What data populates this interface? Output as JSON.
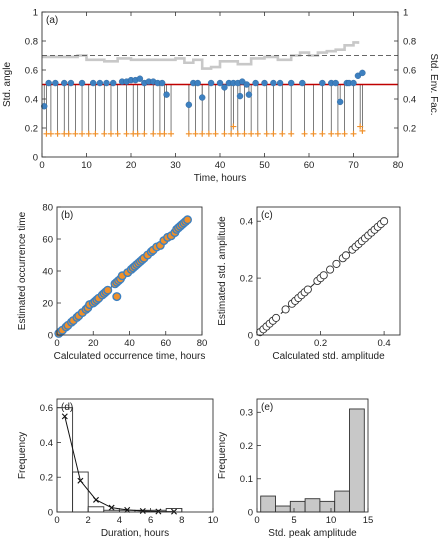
{
  "chart_data": [
    {
      "panel": "(a)",
      "type": "line",
      "xlabel": "Time, hours",
      "ylabel": "Std. angle",
      "ylabel_right": "Std. Env. Fac.",
      "xlim": [
        0,
        80
      ],
      "ylim": [
        0,
        1
      ],
      "xticks": [
        0,
        10,
        20,
        30,
        40,
        50,
        60,
        70,
        80
      ],
      "yticks": [
        0,
        0.2,
        0.4,
        0.6,
        0.8,
        1
      ],
      "yticks_right": [
        0.2,
        0.4,
        0.6,
        0.8,
        1
      ],
      "hlines": [
        {
          "y": 0.5,
          "color": "#c00000",
          "style": "solid"
        },
        {
          "y": 0.7,
          "color": "#666666",
          "style": "dashed"
        }
      ],
      "envelope": {
        "color": "#c8c8c8",
        "x": [
          0,
          5,
          8,
          10,
          14,
          17,
          20,
          24,
          30,
          32,
          34,
          36,
          38,
          40,
          44,
          47,
          50,
          53,
          56,
          58,
          60,
          62,
          64,
          66,
          68,
          70,
          71
        ],
        "y": [
          0.69,
          0.69,
          0.7,
          0.67,
          0.66,
          0.68,
          0.67,
          0.67,
          0.68,
          0.65,
          0.67,
          0.61,
          0.62,
          0.66,
          0.64,
          0.68,
          0.69,
          0.67,
          0.7,
          0.72,
          0.7,
          0.72,
          0.73,
          0.74,
          0.77,
          0.79,
          0.78
        ]
      },
      "series": [
        {
          "marker": "circle",
          "color": "#3d80c0",
          "x": [
            0.5,
            1.5,
            3,
            5,
            6.5,
            9,
            11.5,
            13,
            14.5,
            16,
            18,
            19,
            20,
            21,
            22,
            23,
            24,
            25,
            26,
            27,
            28,
            33,
            34,
            35,
            36,
            38,
            40,
            41,
            42,
            43,
            44,
            44.5,
            45,
            46,
            46.5,
            48,
            50,
            52,
            53.5,
            56,
            58.5,
            63,
            65,
            66,
            67,
            68.5,
            69,
            70,
            71,
            72
          ],
          "y": [
            0.35,
            0.51,
            0.51,
            0.51,
            0.51,
            0.51,
            0.51,
            0.51,
            0.51,
            0.51,
            0.52,
            0.52,
            0.53,
            0.53,
            0.54,
            0.51,
            0.52,
            0.52,
            0.51,
            0.51,
            0.43,
            0.36,
            0.51,
            0.51,
            0.41,
            0.51,
            0.51,
            0.48,
            0.51,
            0.51,
            0.51,
            0.42,
            0.52,
            0.5,
            0.43,
            0.51,
            0.51,
            0.51,
            0.51,
            0.51,
            0.51,
            0.51,
            0.51,
            0.51,
            0.38,
            0.51,
            0.51,
            0.51,
            0.56,
            0.58
          ]
        },
        {
          "marker": "plus",
          "color": "#f0902a",
          "x": [
            1,
            2,
            3.5,
            5,
            6,
            7.5,
            9,
            10.5,
            12,
            14,
            15.5,
            17,
            19,
            20.5,
            21.5,
            23,
            25,
            26.5,
            27.5,
            29,
            33,
            34.5,
            36,
            37.5,
            39,
            41,
            42.5,
            43,
            44,
            45.5,
            47,
            48.5,
            50.5,
            52,
            54,
            56,
            59,
            61,
            63,
            65,
            66.5,
            68,
            70,
            71.5,
            72
          ],
          "y": [
            0.16,
            0.16,
            0.16,
            0.16,
            0.16,
            0.16,
            0.16,
            0.16,
            0.16,
            0.16,
            0.16,
            0.16,
            0.16,
            0.16,
            0.16,
            0.16,
            0.16,
            0.16,
            0.16,
            0.16,
            0.16,
            0.16,
            0.16,
            0.16,
            0.16,
            0.16,
            0.16,
            0.21,
            0.16,
            0.16,
            0.16,
            0.16,
            0.16,
            0.16,
            0.16,
            0.16,
            0.16,
            0.16,
            0.16,
            0.16,
            0.16,
            0.16,
            0.16,
            0.21,
            0.18
          ]
        }
      ]
    },
    {
      "panel": "(b)",
      "type": "scatter",
      "xlabel": "Calculated occurrence time, hours",
      "ylabel": "Estimated occurrence time",
      "xlim": [
        0,
        80
      ],
      "ylim": [
        0,
        80
      ],
      "xticks": [
        0,
        20,
        40,
        60,
        80
      ],
      "yticks": [
        0,
        20,
        40,
        60,
        80
      ],
      "line": [
        [
          0,
          0
        ],
        [
          72,
          72
        ]
      ],
      "points": [
        [
          1,
          1
        ],
        [
          2,
          2
        ],
        [
          3,
          3
        ],
        [
          5,
          5
        ],
        [
          6,
          6
        ],
        [
          8,
          8
        ],
        [
          9,
          9
        ],
        [
          11,
          11
        ],
        [
          12,
          12
        ],
        [
          14,
          14
        ],
        [
          16,
          16
        ],
        [
          17,
          17
        ],
        [
          18,
          19
        ],
        [
          20,
          20
        ],
        [
          21,
          21
        ],
        [
          22,
          22
        ],
        [
          23,
          23
        ],
        [
          25,
          25
        ],
        [
          26,
          26
        ],
        [
          27,
          27
        ],
        [
          28,
          28
        ],
        [
          32,
          32
        ],
        [
          33,
          33
        ],
        [
          34,
          34
        ],
        [
          35,
          35
        ],
        [
          36,
          37
        ],
        [
          33,
          24
        ],
        [
          39,
          39
        ],
        [
          41,
          41
        ],
        [
          42,
          42
        ],
        [
          43,
          43
        ],
        [
          44,
          44
        ],
        [
          45,
          45
        ],
        [
          46,
          46
        ],
        [
          47,
          47
        ],
        [
          48,
          48
        ],
        [
          50,
          50
        ],
        [
          52,
          52
        ],
        [
          53,
          53
        ],
        [
          55,
          55
        ],
        [
          57,
          56
        ],
        [
          59,
          59
        ],
        [
          61,
          61
        ],
        [
          63,
          62
        ],
        [
          65,
          64
        ],
        [
          66,
          66
        ],
        [
          67,
          67
        ],
        [
          68,
          68
        ],
        [
          69,
          69
        ],
        [
          70,
          70
        ],
        [
          71,
          71
        ],
        [
          72,
          72
        ]
      ]
    },
    {
      "panel": "(c)",
      "type": "scatter",
      "xlabel": "Calculated std. amplitude",
      "ylabel": "Estimated std. amplitude",
      "xlim": [
        0,
        0.45
      ],
      "ylim": [
        0,
        0.45
      ],
      "xticks": [
        0,
        0.2,
        0.4
      ],
      "yticks": [
        0,
        0.2,
        0.4
      ],
      "line": [
        [
          0,
          0
        ],
        [
          0.4,
          0.4
        ]
      ],
      "points": [
        [
          0.01,
          0.01
        ],
        [
          0.02,
          0.02
        ],
        [
          0.03,
          0.03
        ],
        [
          0.04,
          0.04
        ],
        [
          0.05,
          0.05
        ],
        [
          0.06,
          0.06
        ],
        [
          0.09,
          0.09
        ],
        [
          0.11,
          0.11
        ],
        [
          0.12,
          0.12
        ],
        [
          0.13,
          0.13
        ],
        [
          0.14,
          0.14
        ],
        [
          0.15,
          0.15
        ],
        [
          0.16,
          0.16
        ],
        [
          0.19,
          0.19
        ],
        [
          0.2,
          0.2
        ],
        [
          0.21,
          0.21
        ],
        [
          0.23,
          0.23
        ],
        [
          0.25,
          0.25
        ],
        [
          0.27,
          0.27
        ],
        [
          0.28,
          0.28
        ],
        [
          0.3,
          0.3
        ],
        [
          0.31,
          0.31
        ],
        [
          0.32,
          0.32
        ],
        [
          0.33,
          0.33
        ],
        [
          0.34,
          0.34
        ],
        [
          0.35,
          0.35
        ],
        [
          0.36,
          0.36
        ],
        [
          0.37,
          0.37
        ],
        [
          0.38,
          0.38
        ],
        [
          0.39,
          0.39
        ],
        [
          0.4,
          0.4
        ]
      ]
    },
    {
      "panel": "(d)",
      "type": "bar",
      "xlabel": "Duration, hours",
      "ylabel": "Frequency",
      "xlim": [
        0,
        10
      ],
      "ylim": [
        0,
        0.65
      ],
      "xticks": [
        0,
        2,
        4,
        6,
        8,
        10
      ],
      "yticks": [
        0,
        0.2,
        0.4,
        0.6
      ],
      "bins": [
        [
          0,
          1
        ],
        [
          1,
          2
        ],
        [
          2,
          3
        ],
        [
          3,
          4
        ],
        [
          4,
          5
        ],
        [
          5,
          6
        ],
        [
          6,
          7
        ],
        [
          7,
          8
        ]
      ],
      "values": [
        0.6,
        0.23,
        0.03,
        0.01,
        0.01,
        0.01,
        0.01,
        0.02
      ],
      "fit": {
        "marker": "x",
        "x": [
          0.5,
          1.5,
          2.5,
          3.5,
          4.5,
          5.5,
          6.5,
          7.5
        ],
        "y": [
          0.55,
          0.18,
          0.07,
          0.025,
          0.012,
          0.006,
          0.003,
          0.002
        ]
      }
    },
    {
      "panel": "(e)",
      "type": "bar",
      "xlabel": "Std. peak amplitude",
      "ylabel": "Frequency",
      "xlim": [
        0,
        15
      ],
      "ylim": [
        0,
        0.34
      ],
      "xticks": [
        0,
        5,
        10,
        15
      ],
      "yticks": [
        0,
        0.1,
        0.2,
        0.3
      ],
      "bins": [
        [
          0.5,
          2.5
        ],
        [
          2.5,
          4.5
        ],
        [
          4.5,
          6.5
        ],
        [
          6.5,
          8.5
        ],
        [
          8.5,
          10.5
        ],
        [
          10.5,
          12.5
        ],
        [
          12.5,
          14.5
        ]
      ],
      "values": [
        0.048,
        0.018,
        0.032,
        0.04,
        0.032,
        0.063,
        0.31
      ]
    }
  ]
}
